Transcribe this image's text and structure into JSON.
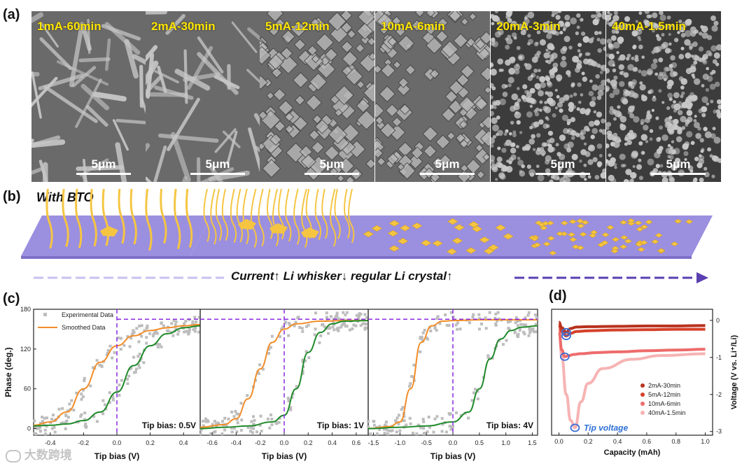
{
  "panel_labels": {
    "a": "(a)",
    "b": "(b)",
    "c": "(c)",
    "d": "(d)"
  },
  "sem_images": [
    {
      "condition": "1mA-60min",
      "scale": "5μm"
    },
    {
      "condition": "2mA-30min",
      "scale": "5μm"
    },
    {
      "condition": "5mA-12min",
      "scale": "5μm"
    },
    {
      "condition": "10mA-6min",
      "scale": "5μm"
    },
    {
      "condition": "20mA-3min",
      "scale": "5μm"
    },
    {
      "condition": "40mA-1.5min",
      "scale": "5μm"
    }
  ],
  "schematic": {
    "title": "With BTO",
    "arrow_text": "Current↑ Li whisker↓ regular Li crystal↑",
    "colors": {
      "substrate": "#9b8fe0",
      "lithium": "#f5c542",
      "arrow": "#5a3fb0"
    }
  },
  "chart_data": [
    {
      "type": "line",
      "panel": "c-1",
      "ylabel": "Phase (deg.)",
      "xlabel": "Tip bias (V)",
      "annotation": "Tip bias: 0.5V",
      "legend": [
        "Experimental Data",
        "Smoothed Data"
      ],
      "xlim": [
        -0.5,
        0.5
      ],
      "xticks": [
        -0.4,
        -0.2,
        0.0,
        0.2,
        0.4
      ],
      "ylim": [
        -10,
        180
      ],
      "yticks": [
        0,
        60,
        120,
        180
      ],
      "dashed_vline_x": 0.0,
      "dashed_hline_y": 165,
      "series": [
        {
          "name": "Smoothed Data",
          "color": "#f28c28",
          "x": [
            -0.5,
            -0.4,
            -0.3,
            -0.2,
            -0.1,
            0.0,
            0.1,
            0.2,
            0.3,
            0.4,
            0.5
          ],
          "y": [
            5,
            10,
            25,
            60,
            100,
            125,
            140,
            148,
            152,
            155,
            157
          ]
        },
        {
          "color": "#1f8a2a",
          "x": [
            -0.5,
            -0.4,
            -0.3,
            -0.2,
            -0.1,
            0.0,
            0.1,
            0.2,
            0.3,
            0.4,
            0.5
          ],
          "y": [
            4,
            5,
            7,
            12,
            25,
            55,
            95,
            125,
            143,
            152,
            155
          ]
        }
      ]
    },
    {
      "type": "line",
      "panel": "c-2",
      "xlabel": "Tip bias (V)",
      "annotation": "Tip bias: 1V",
      "xlim": [
        -0.7,
        0.7
      ],
      "xticks": [
        -0.6,
        -0.4,
        -0.2,
        0.0,
        0.2,
        0.4,
        0.6
      ],
      "dashed_vline_x": 0.0,
      "dashed_hline_y": 165,
      "series": [
        {
          "color": "#f28c28",
          "x": [
            -0.7,
            -0.5,
            -0.4,
            -0.3,
            -0.2,
            -0.1,
            0.0,
            0.1,
            0.3,
            0.5,
            0.7
          ],
          "y": [
            2,
            6,
            15,
            45,
            90,
            130,
            150,
            158,
            162,
            163,
            163
          ]
        },
        {
          "color": "#1f8a2a",
          "x": [
            -0.7,
            -0.5,
            -0.3,
            -0.1,
            0.0,
            0.1,
            0.2,
            0.3,
            0.4,
            0.5,
            0.7
          ],
          "y": [
            0,
            2,
            4,
            10,
            20,
            60,
            115,
            145,
            158,
            162,
            163
          ]
        }
      ]
    },
    {
      "type": "line",
      "panel": "c-3",
      "xlabel": "Tip bias (V)",
      "annotation": "Tip bias: 4V",
      "xlim": [
        -1.6,
        1.6
      ],
      "xticks": [
        -1.5,
        -1.0,
        -0.5,
        0.0,
        0.5,
        1.0,
        1.5
      ],
      "dashed_vline_x": 0.0,
      "dashed_hline_y": 165,
      "series": [
        {
          "color": "#f28c28",
          "x": [
            -1.6,
            -1.2,
            -1.0,
            -0.8,
            -0.6,
            -0.4,
            -0.2,
            0.0,
            0.5,
            1.0,
            1.6
          ],
          "y": [
            0,
            3,
            10,
            60,
            130,
            155,
            162,
            163,
            164,
            164,
            164
          ]
        },
        {
          "color": "#1f8a2a",
          "x": [
            -1.6,
            -1.0,
            -0.5,
            0.0,
            0.3,
            0.5,
            0.7,
            0.9,
            1.1,
            1.3,
            1.6
          ],
          "y": [
            0,
            2,
            4,
            10,
            25,
            60,
            105,
            135,
            148,
            153,
            155
          ]
        }
      ]
    },
    {
      "type": "line",
      "panel": "d",
      "xlabel": "Capacity (mAh)",
      "ylabel": "Voltage (V vs. Li⁺/Li)",
      "annotation": "Tip voltage",
      "xlim": [
        -0.05,
        1.05
      ],
      "xticks": [
        0.0,
        0.2,
        0.4,
        0.6,
        0.8,
        1.0
      ],
      "ylim": [
        -3.1,
        0.3
      ],
      "yticks": [
        0,
        -1,
        -2,
        -3
      ],
      "series": [
        {
          "name": "2mA-30min",
          "color": "#b8321e",
          "x": [
            0.0,
            0.02,
            0.05,
            0.08,
            0.12,
            0.2,
            0.4,
            0.6,
            0.8,
            1.0
          ],
          "y": [
            -0.05,
            -0.2,
            -0.32,
            -0.22,
            -0.18,
            -0.17,
            -0.16,
            -0.15,
            -0.15,
            -0.14
          ]
        },
        {
          "name": "5mA-12min",
          "color": "#d6402a",
          "x": [
            0.0,
            0.02,
            0.05,
            0.08,
            0.12,
            0.2,
            0.4,
            0.6,
            0.8,
            1.0
          ],
          "y": [
            -0.1,
            -0.3,
            -0.42,
            -0.35,
            -0.3,
            -0.28,
            -0.26,
            -0.25,
            -0.24,
            -0.24
          ]
        },
        {
          "name": "10mA-6min",
          "color": "#ee6b6b",
          "x": [
            0.0,
            0.02,
            0.04,
            0.07,
            0.1,
            0.15,
            0.25,
            0.4,
            0.6,
            0.8,
            1.0
          ],
          "y": [
            -0.3,
            -0.8,
            -0.98,
            -0.95,
            -0.92,
            -0.9,
            -0.87,
            -0.85,
            -0.82,
            -0.8,
            -0.78
          ]
        },
        {
          "name": "40mA-1.5min",
          "color": "#f7b3b3",
          "x": [
            0.0,
            0.02,
            0.05,
            0.08,
            0.11,
            0.15,
            0.2,
            0.3,
            0.5,
            0.7,
            1.0
          ],
          "y": [
            -0.1,
            -1.0,
            -2.0,
            -2.7,
            -2.9,
            -2.2,
            -1.7,
            -1.3,
            -1.05,
            -0.95,
            -0.9
          ]
        }
      ]
    }
  ],
  "watermark": "大数跨境"
}
